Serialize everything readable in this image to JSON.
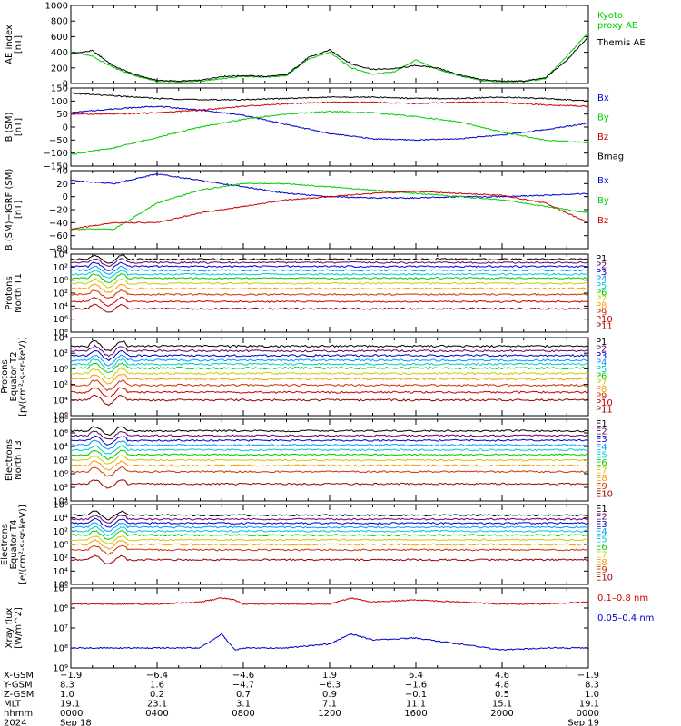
{
  "chart_data": [
    {
      "type": "line",
      "ylabel": [
        "AE index",
        "[nT]"
      ],
      "ylim": [
        0,
        1000
      ],
      "yticks": [
        "0",
        "200",
        "400",
        "600",
        "800",
        "1000"
      ],
      "scale": "linear",
      "series": [
        {
          "name": "Kyoto proxy AE",
          "color": "#00cc00",
          "legend": [
            "Kyoto",
            "proxy AE"
          ],
          "x": [
            0,
            1,
            2,
            3,
            4,
            5,
            6,
            7,
            8,
            9,
            10,
            11,
            12,
            13,
            14,
            15,
            16,
            17,
            18,
            19,
            20,
            21,
            22,
            23,
            24
          ],
          "y": [
            400,
            350,
            200,
            100,
            30,
            20,
            30,
            60,
            90,
            80,
            100,
            310,
            400,
            200,
            120,
            150,
            300,
            180,
            100,
            40,
            20,
            25,
            60,
            350,
            650
          ]
        },
        {
          "name": "Themis AE",
          "color": "#000000",
          "legend": [
            "Themis AE"
          ],
          "x": [
            0,
            1,
            2,
            3,
            4,
            5,
            6,
            7,
            8,
            9,
            10,
            11,
            12,
            13,
            14,
            15,
            16,
            17,
            18,
            19,
            20,
            21,
            22,
            23,
            24
          ],
          "y": [
            380,
            420,
            220,
            110,
            40,
            30,
            40,
            90,
            100,
            90,
            110,
            330,
            430,
            250,
            180,
            190,
            230,
            200,
            110,
            50,
            30,
            30,
            70,
            300,
            600
          ]
        }
      ]
    },
    {
      "type": "line",
      "ylabel": [
        "B (SM)",
        "[nT]"
      ],
      "ylim": [
        -150,
        150
      ],
      "yticks": [
        "−150",
        "−100",
        "−50",
        "0",
        "50",
        "100",
        "150"
      ],
      "scale": "linear",
      "series": [
        {
          "name": "Bx",
          "color": "#0000cc",
          "x": [
            0,
            2,
            4,
            6,
            8,
            10,
            12,
            14,
            16,
            18,
            20,
            22,
            24
          ],
          "y": [
            55,
            70,
            80,
            65,
            45,
            10,
            -25,
            -45,
            -50,
            -45,
            -30,
            -10,
            15
          ]
        },
        {
          "name": "By",
          "color": "#00cc00",
          "x": [
            0,
            2,
            4,
            6,
            8,
            10,
            12,
            14,
            16,
            18,
            20,
            22,
            24
          ],
          "y": [
            -105,
            -80,
            -40,
            0,
            30,
            50,
            60,
            55,
            40,
            20,
            -20,
            -50,
            -60
          ]
        },
        {
          "name": "Bz",
          "color": "#cc0000",
          "x": [
            0,
            2,
            4,
            6,
            8,
            10,
            12,
            14,
            16,
            18,
            20,
            22,
            24
          ],
          "y": [
            50,
            50,
            55,
            65,
            80,
            90,
            95,
            95,
            90,
            95,
            95,
            85,
            80
          ]
        },
        {
          "name": "Bmag",
          "color": "#000000",
          "x": [
            0,
            2,
            4,
            6,
            8,
            10,
            12,
            14,
            16,
            18,
            20,
            22,
            24
          ],
          "y": [
            130,
            120,
            110,
            105,
            105,
            110,
            115,
            115,
            110,
            110,
            115,
            110,
            100
          ]
        }
      ]
    },
    {
      "type": "line",
      "ylabel": [
        "B (SM)−IGRF (SM)",
        "[nT]"
      ],
      "ylim": [
        -80,
        40
      ],
      "yticks": [
        "−80",
        "−60",
        "−40",
        "−20",
        "0",
        "20",
        "40"
      ],
      "scale": "linear",
      "series": [
        {
          "name": "Bx",
          "color": "#0000cc",
          "x": [
            0,
            2,
            4,
            6,
            8,
            10,
            12,
            14,
            16,
            18,
            20,
            22,
            24
          ],
          "y": [
            25,
            20,
            35,
            25,
            15,
            5,
            0,
            -2,
            -2,
            0,
            0,
            2,
            5
          ]
        },
        {
          "name": "By",
          "color": "#00cc00",
          "x": [
            0,
            2,
            4,
            6,
            8,
            10,
            12,
            14,
            16,
            18,
            20,
            22,
            24
          ],
          "y": [
            -50,
            -50,
            -10,
            10,
            20,
            20,
            15,
            10,
            5,
            0,
            -5,
            -15,
            -25
          ]
        },
        {
          "name": "Bz",
          "color": "#cc0000",
          "x": [
            0,
            2,
            4,
            6,
            8,
            10,
            12,
            14,
            16,
            18,
            20,
            22,
            24
          ],
          "y": [
            -50,
            -40,
            -40,
            -25,
            -15,
            -5,
            0,
            5,
            8,
            5,
            2,
            -10,
            -40
          ]
        }
      ]
    },
    {
      "type": "line",
      "ylabel": [
        "Protons",
        "North T1"
      ],
      "ylim": [
        "1e-8",
        "1e4"
      ],
      "yticks": [
        "10⁸",
        "10⁶",
        "10⁴",
        "10²",
        "10⁰",
        "10²",
        "10⁴"
      ],
      "scale": "log",
      "channels": [
        "P1",
        "P2",
        "P3",
        "P4",
        "P5",
        "P6",
        "P7",
        "P8",
        "P9",
        "P10",
        "P11"
      ],
      "channel_colors": [
        "#000000",
        "#660066",
        "#0000cc",
        "#0099ff",
        "#00cccc",
        "#00cc00",
        "#cccc00",
        "#ff9900",
        "#cc3300",
        "#cc0000",
        "#990000"
      ],
      "levels_log10": [
        3.2,
        2.7,
        2.1,
        1.5,
        0.9,
        0.3,
        -0.5,
        -1.3,
        -2.2,
        -3.3,
        -4.4
      ]
    },
    {
      "type": "line",
      "ylabel": [
        "Protons",
        "Equator T2",
        "[p/(cm²-s-sr-keV)]"
      ],
      "ylim": [
        "1e-6",
        "1e4"
      ],
      "yticks": [
        "10⁶",
        "10⁴",
        "10²",
        "10⁰",
        "10²",
        "10⁴"
      ],
      "scale": "log",
      "channels": [
        "P1",
        "P2",
        "P3",
        "P4",
        "P5",
        "P6",
        "P7",
        "P8",
        "P9",
        "P10",
        "P11"
      ],
      "channel_colors": [
        "#000000",
        "#660066",
        "#0000cc",
        "#0099ff",
        "#00cccc",
        "#00cc00",
        "#cccc00",
        "#ff9900",
        "#cc3300",
        "#cc0000",
        "#990000"
      ],
      "levels_log10": [
        2.9,
        2.3,
        1.7,
        1.1,
        0.6,
        0.1,
        -0.6,
        -1.3,
        -2.1,
        -3.0,
        -4.0
      ]
    },
    {
      "type": "line",
      "ylabel": [
        "Electrons",
        "North T3"
      ],
      "ylim": [
        "1e-4",
        "1e8"
      ],
      "yticks": [
        "10⁴",
        "10²",
        "10⁰",
        "10²",
        "10⁴",
        "10⁶",
        "10⁸"
      ],
      "scale": "log",
      "channels": [
        "E1",
        "E2",
        "E3",
        "E4",
        "E5",
        "E6",
        "E7",
        "E8",
        "E9",
        "E10"
      ],
      "channel_colors": [
        "#000000",
        "#660066",
        "#0000cc",
        "#0099ff",
        "#00cccc",
        "#00cc00",
        "#cccc00",
        "#ff9900",
        "#cc3300",
        "#990000"
      ],
      "levels_log10": [
        6.3,
        5.6,
        4.9,
        4.2,
        3.5,
        2.8,
        2.0,
        1.2,
        0.3,
        -1.5
      ]
    },
    {
      "type": "line",
      "ylabel": [
        "Electrons",
        "Equator T4",
        "[e/(cm²-s-sr-keV)]"
      ],
      "ylim": [
        "1e-6",
        "1e6"
      ],
      "yticks": [
        "10⁶",
        "10⁴",
        "10²",
        "10⁰",
        "10²",
        "10⁴",
        "10⁶"
      ],
      "scale": "log",
      "channels": [
        "E1",
        "E2",
        "E3",
        "E4",
        "E5",
        "E6",
        "E7",
        "E8",
        "E9",
        "E10"
      ],
      "channel_colors": [
        "#000000",
        "#660066",
        "#0000cc",
        "#0099ff",
        "#00cccc",
        "#00cc00",
        "#cccc00",
        "#ff9900",
        "#cc3300",
        "#990000"
      ],
      "levels_log10": [
        4.4,
        3.8,
        3.2,
        2.6,
        2.0,
        1.4,
        0.7,
        0.0,
        -0.8,
        -2.3
      ]
    },
    {
      "type": "line",
      "ylabel": [
        "Xray flux",
        "[W/m^2]"
      ],
      "ylim": [
        "1e-9",
        "1e-5"
      ],
      "yticks": [
        "10⁹",
        "10⁸",
        "10⁷",
        "10⁶",
        "10⁵"
      ],
      "scale": "log",
      "series": [
        {
          "name": "0.1–0.8 nm",
          "color": "#cc0000",
          "x": [
            0,
            2,
            4,
            6,
            7,
            7.6,
            8,
            10,
            12,
            13,
            14,
            16,
            18,
            20,
            22,
            24
          ],
          "y_log10": [
            -5.8,
            -5.8,
            -5.8,
            -5.7,
            -5.5,
            -5.6,
            -5.8,
            -5.8,
            -5.8,
            -5.5,
            -5.7,
            -5.6,
            -5.7,
            -5.8,
            -5.8,
            -5.7
          ]
        },
        {
          "name": "0.05–0.4 nm",
          "color": "#0000cc",
          "x": [
            0,
            2,
            4,
            6,
            7,
            7.6,
            8,
            10,
            12,
            13,
            14,
            16,
            18,
            20,
            22,
            24
          ],
          "y_log10": [
            -8.0,
            -8.0,
            -8.0,
            -8.0,
            -7.3,
            -8.1,
            -8.0,
            -8.0,
            -7.8,
            -7.3,
            -7.6,
            -7.5,
            -7.8,
            -8.1,
            -8.0,
            -8.0
          ]
        }
      ]
    }
  ],
  "xaxis": {
    "xlim": [
      0,
      24
    ],
    "label_hours": [
      0,
      4,
      8,
      12,
      16,
      20,
      24
    ],
    "rows": [
      {
        "label": "X-GSM",
        "values": [
          "−1.9",
          "−6.4",
          "−4.6",
          "1.9",
          "6.4",
          "4.6",
          "−1.9"
        ]
      },
      {
        "label": "Y-GSM",
        "values": [
          "8.3",
          "1.6",
          "−4.7",
          "−6.3",
          "−1.6",
          "4.8",
          "8.3"
        ]
      },
      {
        "label": "Z-GSM",
        "values": [
          "1.0",
          "0.2",
          "0.7",
          "0.9",
          "−0.1",
          "0.5",
          "1.0"
        ]
      },
      {
        "label": "MLT",
        "values": [
          "19.1",
          "23.1",
          "3.1",
          "7.1",
          "11.1",
          "15.1",
          "19.1"
        ]
      },
      {
        "label": "hhmm",
        "values": [
          "0000",
          "0400",
          "0800",
          "1200",
          "1600",
          "2000",
          "0000"
        ]
      },
      {
        "label": "2024",
        "values": [
          "Sep 18",
          "",
          "",
          "",
          "",
          "",
          "Sep 19"
        ]
      }
    ]
  }
}
